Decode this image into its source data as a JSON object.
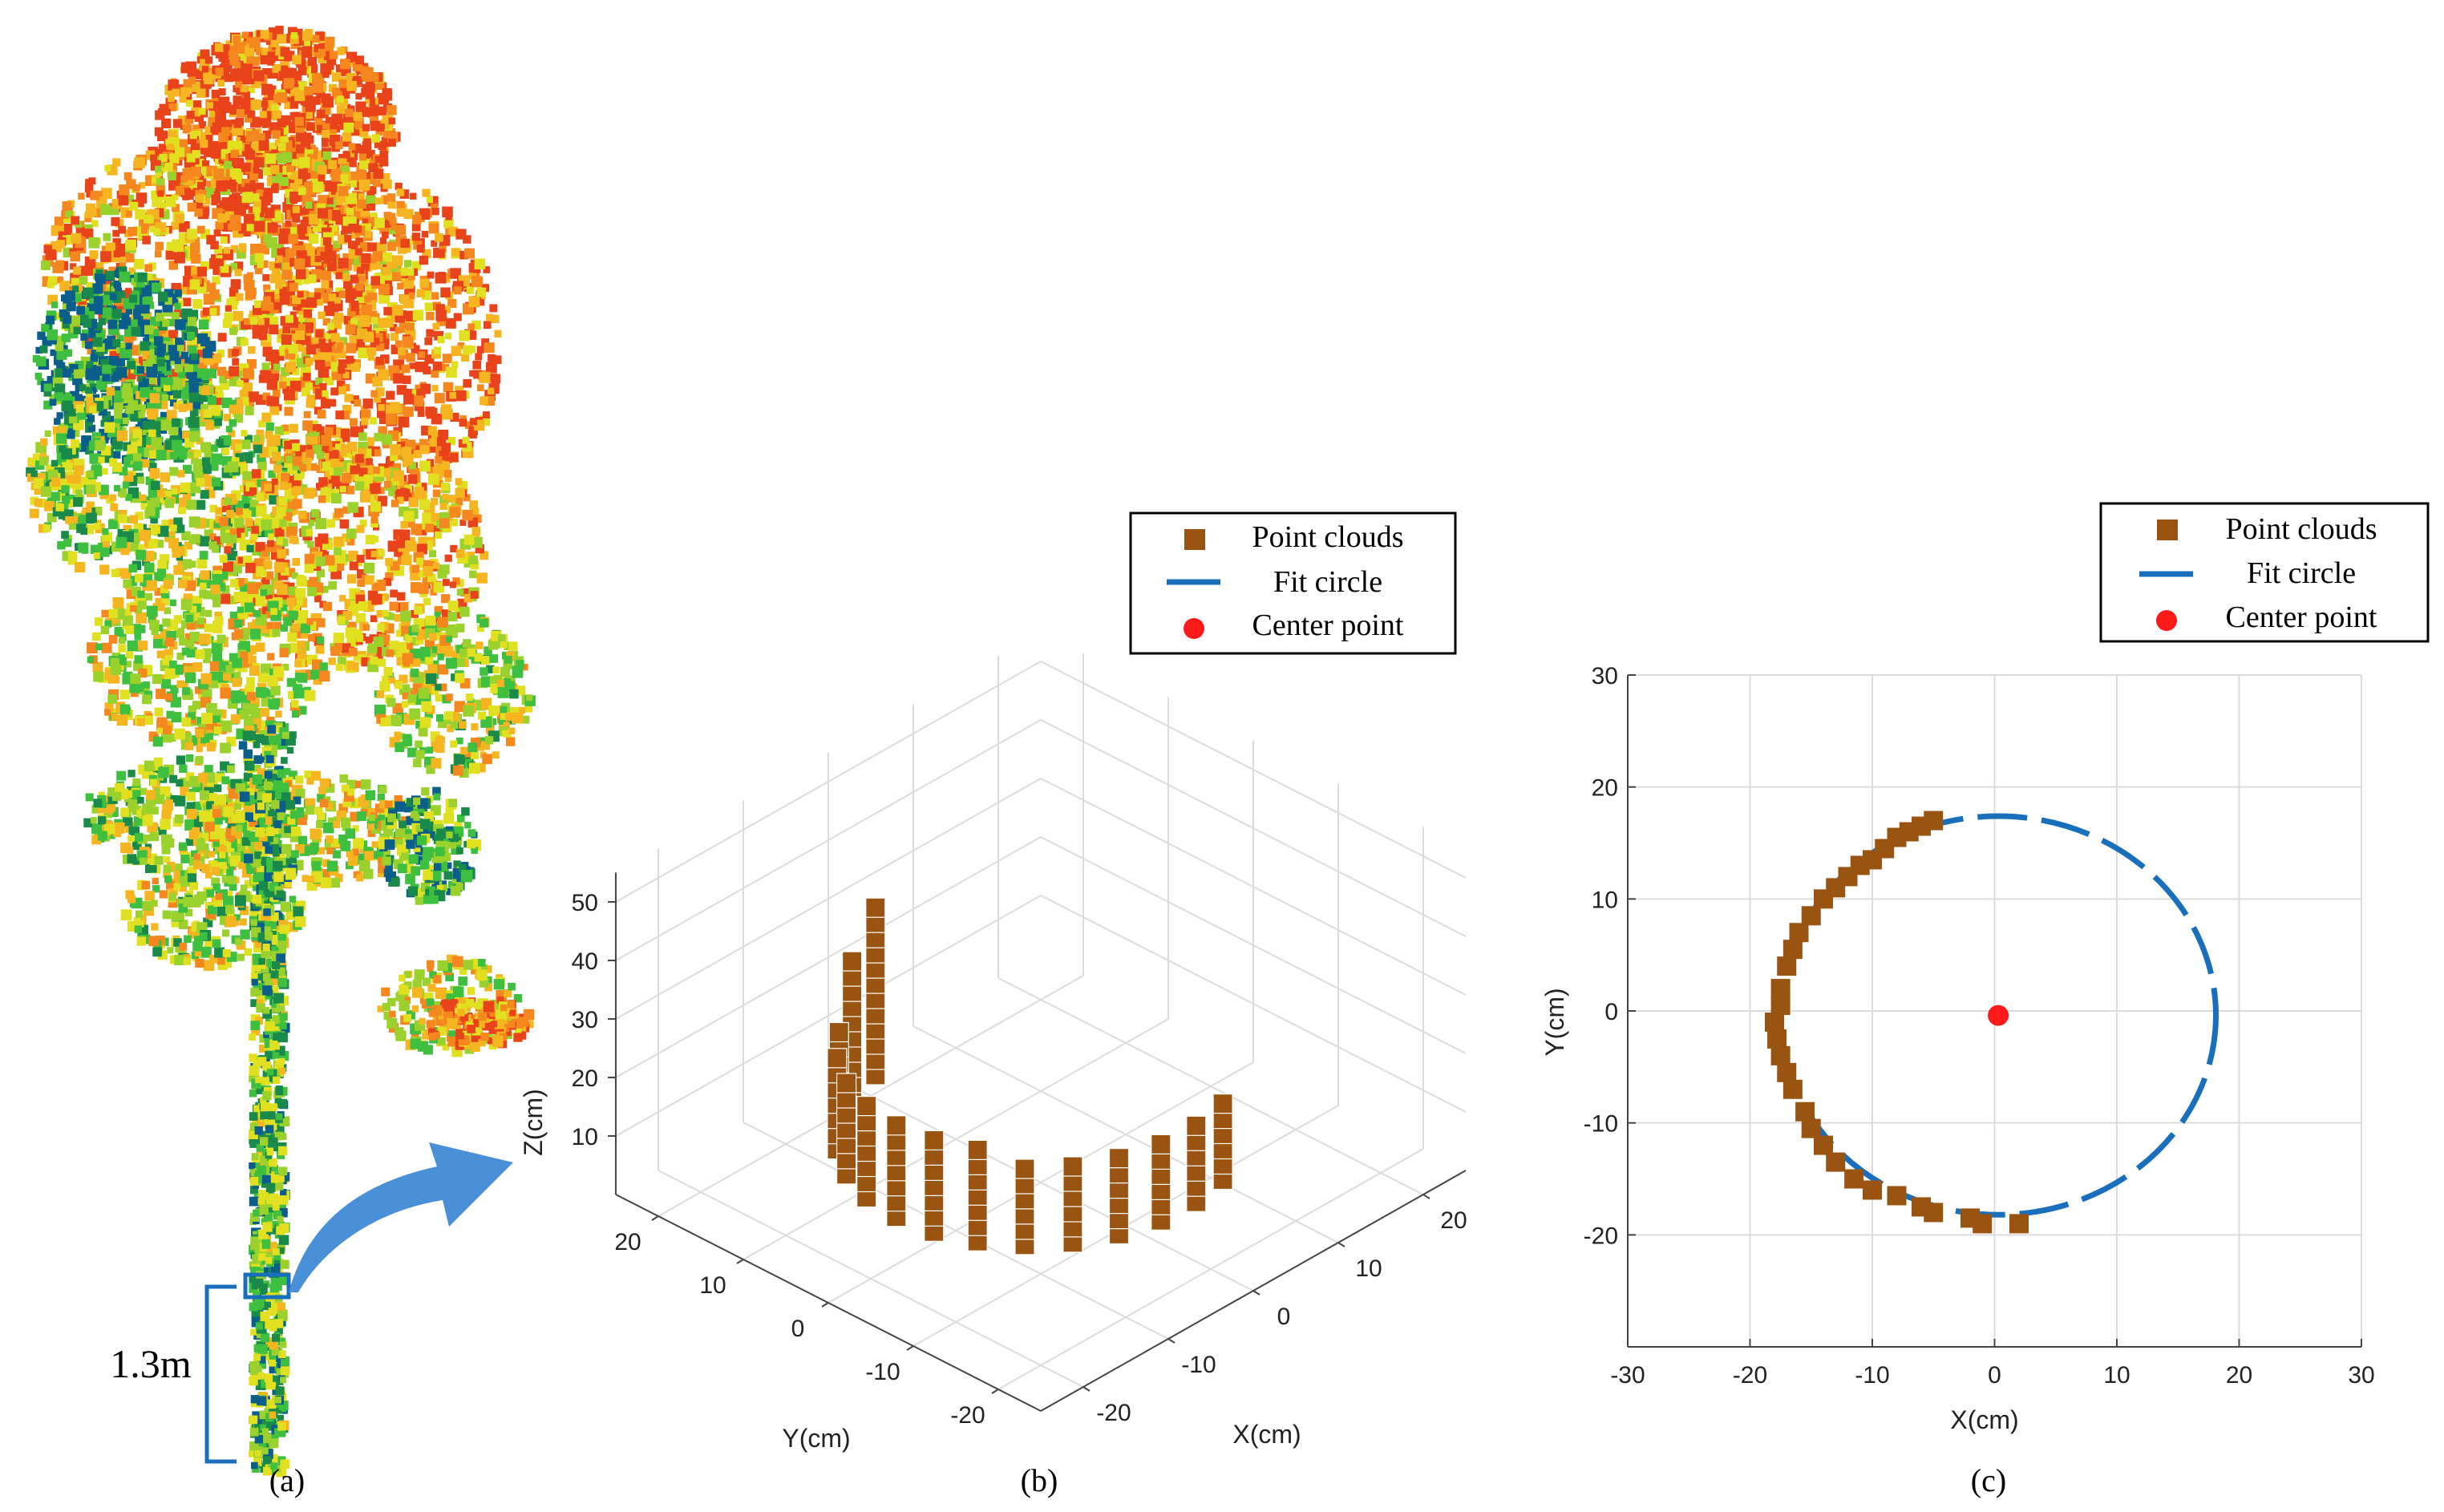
{
  "panels": {
    "a_label": "(a)",
    "b_label": "(b)",
    "c_label": "(c)"
  },
  "tree": {
    "height_marker": "1.3m",
    "colors": [
      "#0b5e8a",
      "#1a8a4a",
      "#3fbf3f",
      "#9ad12c",
      "#e0e020",
      "#f5b521",
      "#f5871f",
      "#e8431a"
    ]
  },
  "colors": {
    "point": "#9a5412",
    "fit": "#1a6fbd",
    "center": "#ff1a1a",
    "arrow": "#4a90d9",
    "grid": "#dcdcdc"
  },
  "legend": {
    "items": [
      "Point clouds",
      "Fit circle",
      "Center point"
    ]
  },
  "chart_data": [
    {
      "type": "scatter3d",
      "panel": "(b)",
      "xlabel": "X(cm)",
      "ylabel": "Y(cm)",
      "zlabel": "Z(cm)",
      "xlim": [
        -25,
        25
      ],
      "ylim": [
        -25,
        25
      ],
      "zlim": [
        0,
        55
      ],
      "x_ticks": [
        "-20",
        "-10",
        "0",
        "10",
        "20"
      ],
      "y_ticks": [
        "20",
        "10",
        "0",
        "-10",
        "-20"
      ],
      "z_ticks": [
        "10",
        "20",
        "30",
        "40",
        "50"
      ],
      "series": [
        {
          "name": "Point clouds",
          "description": "half-cylinder stem slice, radius ~18 cm, height 0–30 cm"
        }
      ]
    },
    {
      "type": "scatter",
      "panel": "(c)",
      "xlabel": "X(cm)",
      "ylabel": "Y(cm)",
      "xlim": [
        -30,
        30
      ],
      "ylim": [
        -30,
        30
      ],
      "x_ticks": [
        "-30",
        "-20",
        "-10",
        "0",
        "10",
        "20",
        "30"
      ],
      "y_ticks": [
        "30",
        "20",
        "10",
        "0",
        "-10",
        "-20"
      ],
      "fit_circle": {
        "center": [
          0.3,
          -0.4
        ],
        "radius": 17.8
      },
      "center_point": [
        0.3,
        -0.4
      ],
      "series": [
        {
          "name": "Point clouds",
          "points": [
            [
              -5,
              17
            ],
            [
              -6,
              16.5
            ],
            [
              -7,
              16
            ],
            [
              -8,
              15.5
            ],
            [
              -9,
              14.5
            ],
            [
              -10,
              13.5
            ],
            [
              -11,
              13
            ],
            [
              -12,
              12
            ],
            [
              -13,
              11
            ],
            [
              -14,
              10
            ],
            [
              -15,
              8.5
            ],
            [
              -16,
              7
            ],
            [
              -16.5,
              5.5
            ],
            [
              -17,
              4
            ],
            [
              -17.5,
              2
            ],
            [
              -17.5,
              0.5
            ],
            [
              -18,
              -1
            ],
            [
              -17.8,
              -2.5
            ],
            [
              -17.5,
              -4
            ],
            [
              -17,
              -5.5
            ],
            [
              -16.5,
              -7
            ],
            [
              -15.5,
              -9
            ],
            [
              -15,
              -10.5
            ],
            [
              -14,
              -12
            ],
            [
              -13,
              -13.5
            ],
            [
              -11.5,
              -15
            ],
            [
              -10,
              -16
            ],
            [
              -8,
              -16.5
            ],
            [
              -6,
              -17.5
            ],
            [
              -5,
              -18
            ],
            [
              -2,
              -18.5
            ],
            [
              -1,
              -19
            ],
            [
              2,
              -19
            ]
          ]
        }
      ]
    }
  ]
}
